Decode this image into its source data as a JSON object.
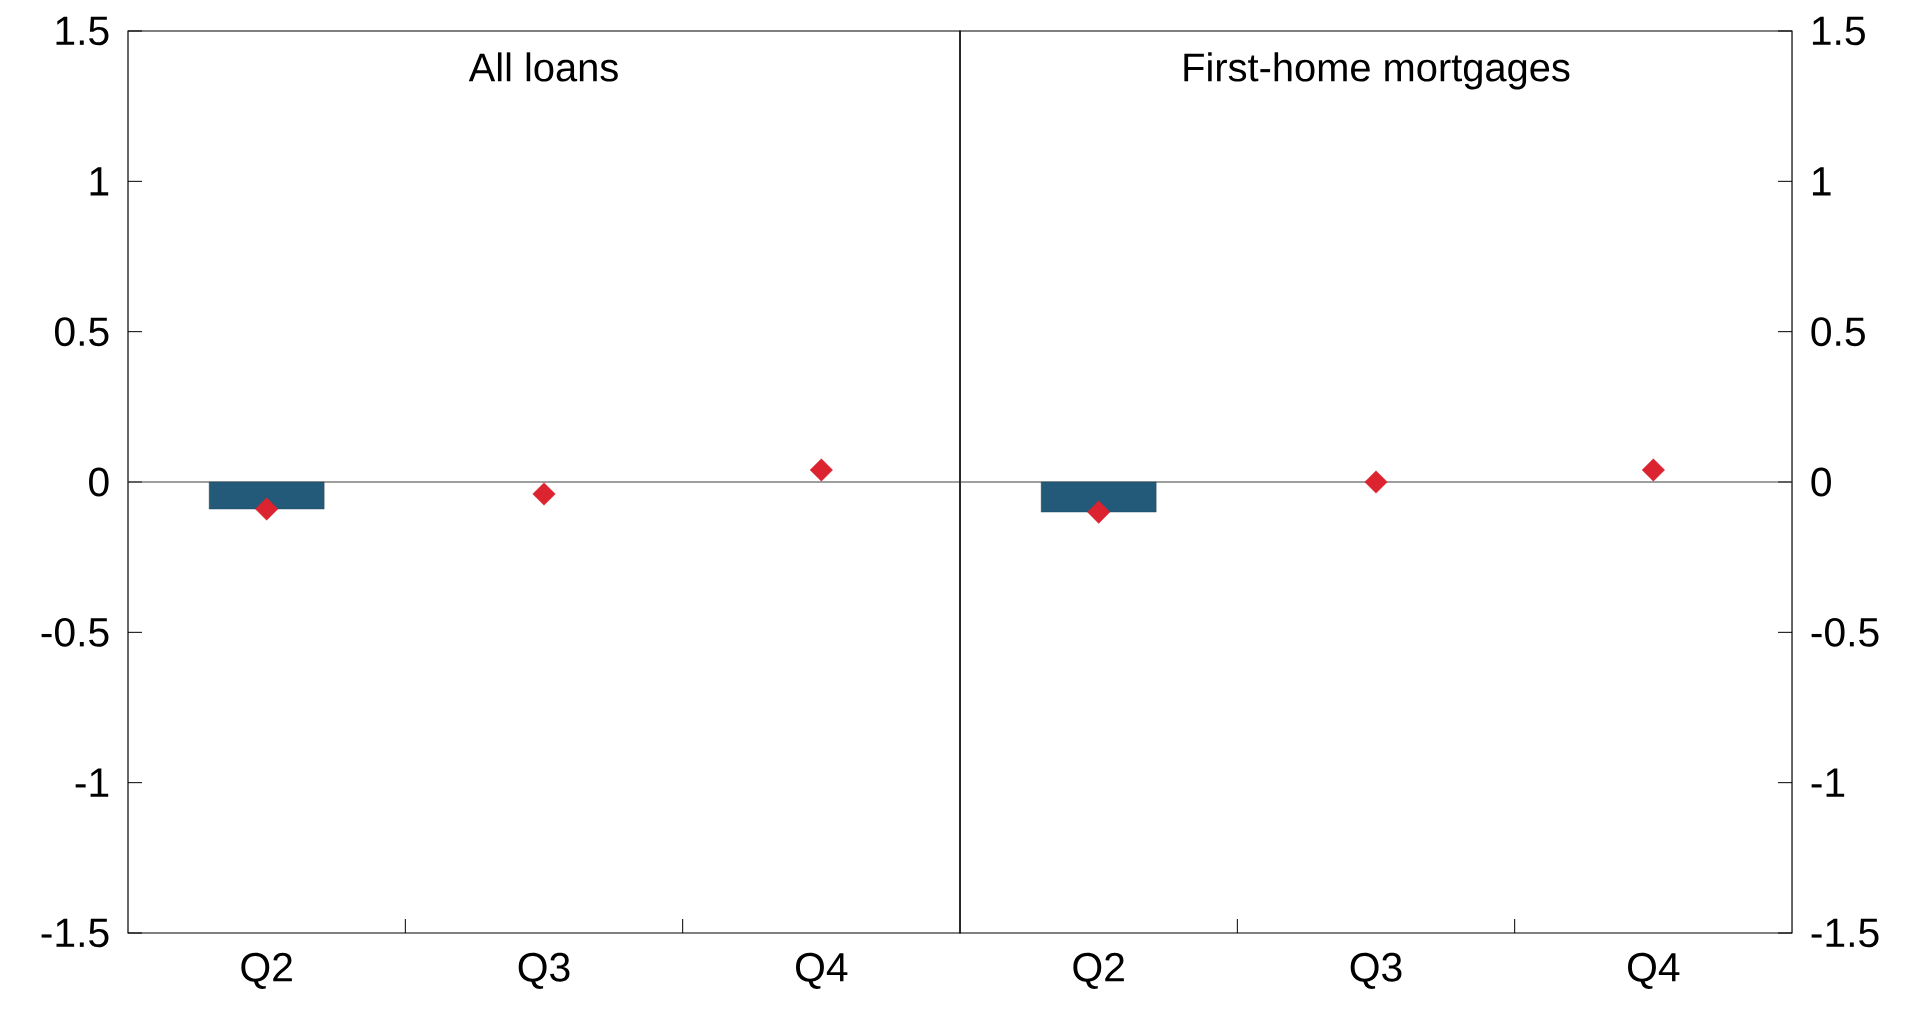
{
  "chart_data": [
    {
      "type": "bar",
      "title": "All loans",
      "categories": [
        "Q2",
        "Q3",
        "Q4"
      ],
      "ylim": [
        -1.5,
        1.5
      ],
      "yticks": [
        -1.5,
        -1,
        -0.5,
        0,
        0.5,
        1,
        1.5
      ],
      "series": [
        {
          "color": "#235a7a",
          "values": [
            -0.09,
            null,
            null
          ]
        },
        {
          "type": "scatter",
          "color": "#dc2330",
          "marker": "diamond",
          "values": [
            -0.09,
            -0.04,
            0.04
          ]
        }
      ],
      "ref_lines": [
        {
          "axis": "y",
          "value": 0
        }
      ]
    },
    {
      "type": "bar",
      "title": "First-home mortgages",
      "categories": [
        "Q2",
        "Q3",
        "Q4"
      ],
      "ylim": [
        -1.5,
        1.5
      ],
      "yticks": [
        -1.5,
        -1,
        -0.5,
        0,
        0.5,
        1,
        1.5
      ],
      "series": [
        {
          "color": "#235a7a",
          "values": [
            -0.1,
            null,
            null
          ]
        },
        {
          "type": "scatter",
          "color": "#dc2330",
          "marker": "diamond",
          "values": [
            -0.1,
            0,
            0.04
          ]
        }
      ],
      "ref_lines": [
        {
          "axis": "y",
          "value": 0
        }
      ]
    }
  ]
}
